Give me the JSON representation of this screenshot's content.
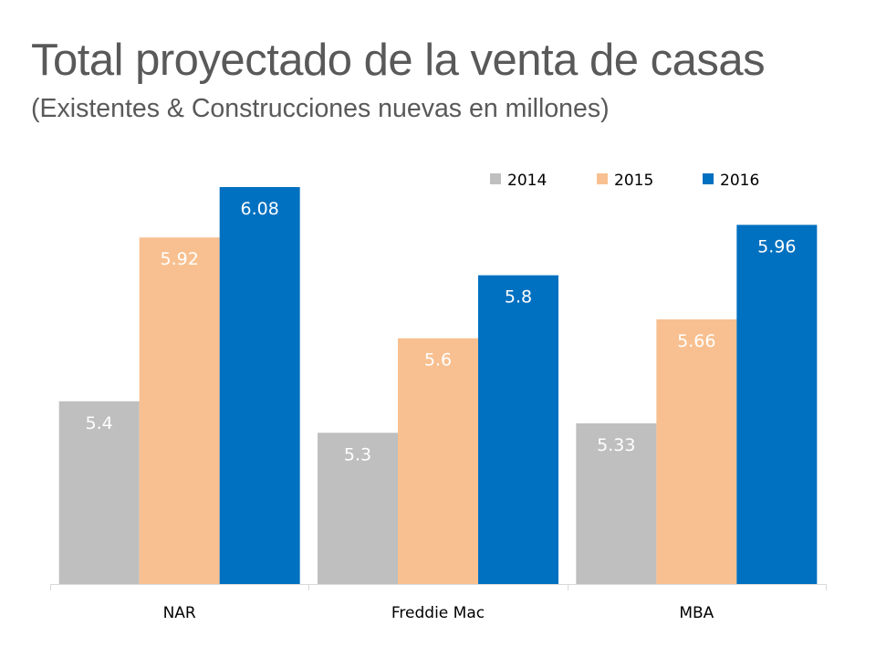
{
  "title": "Total proyectado de la venta de casas",
  "subtitle": "(Existentes & Construcciones nuevas en millones)",
  "chart_data": {
    "type": "bar",
    "title": "Total proyectado de la venta de casas",
    "subtitle": "(Existentes & Construcciones nuevas en millones)",
    "xlabel": "",
    "ylabel": "",
    "categories": [
      "NAR",
      "Freddie Mac",
      "MBA"
    ],
    "series": [
      {
        "name": "2014",
        "color": "#BFBFBF",
        "values": [
          5.4,
          5.3,
          5.33
        ],
        "labels": [
          "5.4",
          "5.3",
          "5.33"
        ]
      },
      {
        "name": "2015",
        "color": "#F8C090",
        "values": [
          5.92,
          5.6,
          5.66
        ],
        "labels": [
          "5.92",
          "5.6",
          "5.66"
        ]
      },
      {
        "name": "2016",
        "color": "#0070C0",
        "values": [
          6.08,
          5.8,
          5.96
        ],
        "labels": [
          "6.08",
          "5.8",
          "5.96"
        ]
      }
    ],
    "ylim": [
      4.82,
      6.08
    ],
    "grid": false,
    "y_axis_visible": false,
    "legend_position": "top-right",
    "data_label_color": "#FFFFFF"
  }
}
